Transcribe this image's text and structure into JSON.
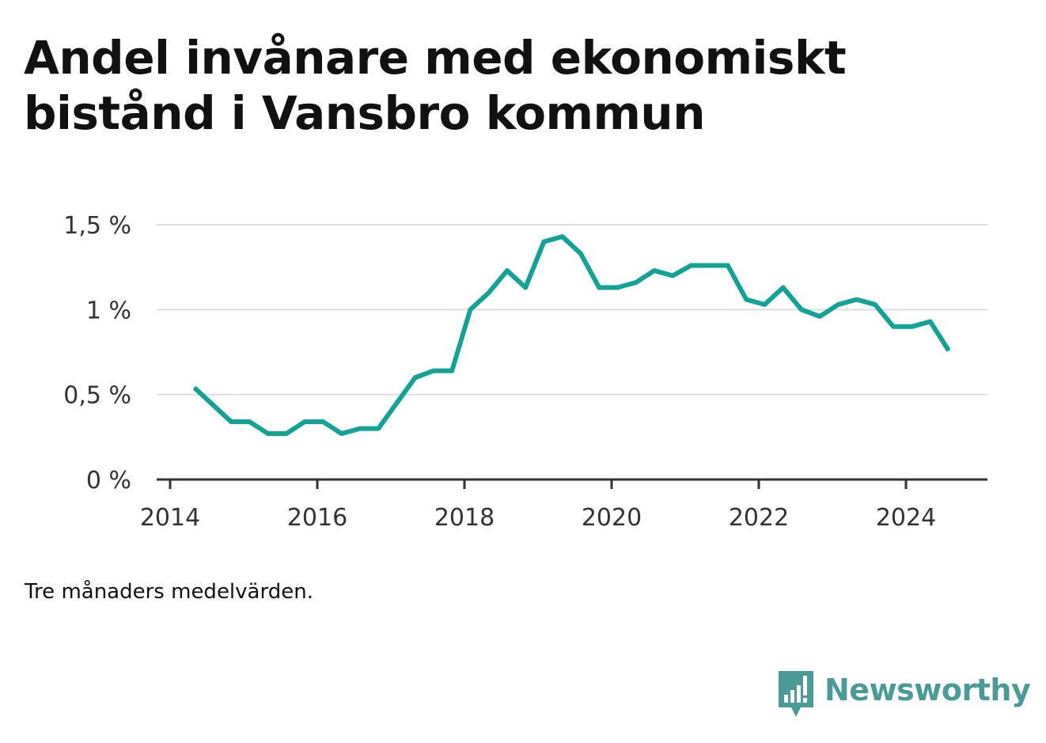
{
  "title": "Andel invånare med ekonomiskt bistånd i Vansbro kommun",
  "note": "Tre månaders medelvärden.",
  "brand": {
    "name": "Newsworthy",
    "icon": "newsworthy-logo-icon",
    "color": "#4a9a97"
  },
  "chart_data": {
    "type": "line",
    "title": "Andel invånare med ekonomiskt bistånd i Vansbro kommun",
    "xlabel": "",
    "ylabel": "",
    "xlim": [
      2014,
      2025.2
    ],
    "ylim": [
      0,
      1.5
    ],
    "x_ticks": [
      {
        "value": 2014,
        "label": "2014"
      },
      {
        "value": 2016,
        "label": "2016"
      },
      {
        "value": 2018,
        "label": "2018"
      },
      {
        "value": 2020,
        "label": "2020"
      },
      {
        "value": 2022,
        "label": "2022"
      },
      {
        "value": 2024,
        "label": "2024"
      }
    ],
    "y_ticks": [
      {
        "value": 0,
        "label": "0 %"
      },
      {
        "value": 0.5,
        "label": "0,5 %"
      },
      {
        "value": 1,
        "label": "1 %"
      },
      {
        "value": 1.5,
        "label": "1,5 %"
      }
    ],
    "grid": true,
    "line_color": "#13a396",
    "series": [
      {
        "x": [
          2014.33,
          2014.58,
          2014.83,
          2015.08,
          2015.33,
          2015.58,
          2015.83,
          2016.08,
          2016.33,
          2016.58,
          2016.83,
          2017.08,
          2017.33,
          2017.58,
          2017.83,
          2018.08,
          2018.33,
          2018.58,
          2018.83,
          2019.08,
          2019.33,
          2019.58,
          2019.83,
          2020.08,
          2020.33,
          2020.58,
          2020.83,
          2021.08,
          2021.33,
          2021.58,
          2021.83,
          2022.08,
          2022.33,
          2022.58,
          2022.83,
          2023.08,
          2023.33,
          2023.58,
          2023.83,
          2024.08,
          2024.33,
          2024.58
        ],
        "values": [
          0.54,
          0.44,
          0.34,
          0.34,
          0.27,
          0.27,
          0.34,
          0.34,
          0.27,
          0.3,
          0.3,
          0.45,
          0.6,
          0.64,
          0.64,
          1.0,
          1.1,
          1.23,
          1.13,
          1.4,
          1.43,
          1.33,
          1.13,
          1.13,
          1.16,
          1.23,
          1.2,
          1.26,
          1.26,
          1.26,
          1.06,
          1.03,
          1.13,
          1.0,
          0.96,
          1.03,
          1.06,
          1.03,
          0.9,
          0.9,
          0.93,
          0.76
        ]
      }
    ]
  }
}
